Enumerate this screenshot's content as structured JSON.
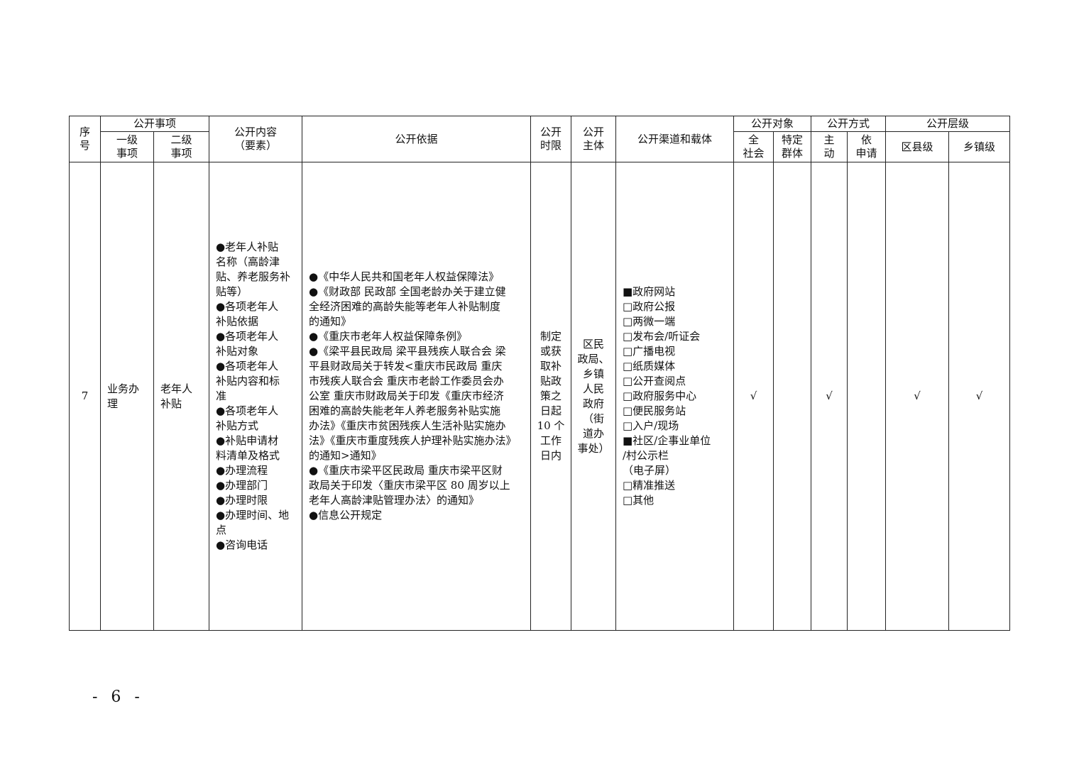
{
  "headers": {
    "seq": "序\n号",
    "item": "公开事项",
    "item_l1": "一级\n事项",
    "item_l2": "二级\n事项",
    "content": "公开内容\n（要素）",
    "basis": "公开依据",
    "deadline": "公开\n时限",
    "subject": "公开\n主体",
    "channel": "公开渠道和载体",
    "target": "公开对象",
    "target_all": "全\n社会",
    "target_group": "特定\n群体",
    "method": "公开方式",
    "method_active": "主\n动",
    "method_apply": "依\n申请",
    "level": "公开层级",
    "level_county": "区县级",
    "level_town": "乡镇级"
  },
  "row": {
    "seq": "7",
    "item_l1": "业务办\n理",
    "item_l2": "老年人\n补贴",
    "content": "●老年人补贴\n名称（高龄津\n贴、养老服务补\n贴等）\n●各项老年人\n补贴依据\n●各项老年人\n补贴对象\n●各项老年人\n补贴内容和标\n准\n●各项老年人\n补贴方式\n●补贴申请材\n料清单及格式\n●办理流程\n●办理部门\n●办理时限\n●办理时间、地\n点\n●咨询电话",
    "basis": "●《中华人民共和国老年人权益保障法》\n●《财政部 民政部 全国老龄办关于建立健\n全经济困难的高龄失能等老年人补贴制度\n的通知》\n●《重庆市老年人权益保障条例》\n●《梁平县民政局 梁平县残疾人联合会 梁\n平县财政局关于转发<重庆市民政局 重庆\n市残疾人联合会 重庆市老龄工作委员会办\n公室 重庆市财政局关于印发《重庆市经济\n困难的高龄失能老年人养老服务补贴实施\n办法》《重庆市贫困残疾人生活补贴实施办\n法》《重庆市重度残疾人护理补贴实施办法》\n的通知>通知》\n●《重庆市梁平区民政局 重庆市梁平区财\n政局关于印发〈重庆市梁平区 80 周岁以上\n老年人高龄津贴管理办法〉的通知》\n●信息公开规定",
    "deadline": "制定\n或获\n取补\n贴政\n策之\n日起\n10 个\n工作\n日内",
    "subject": "区民\n政局、\n乡镇\n人民\n政府\n（街\n道办\n事处）",
    "channel": "■政府网站\n□政府公报\n□两微一端\n□发布会/听证会\n□广播电视\n□纸质媒体\n□公开查阅点\n□政府服务中心\n□便民服务站\n□入户/现场\n■社区/企事业单位\n/村公示栏\n（电子屏）\n□精准推送\n□其他",
    "target_all": "√",
    "target_group": "",
    "method_active": "√",
    "method_apply": "",
    "level_county": "√",
    "level_town": "√"
  },
  "page_number": "- 6 -"
}
